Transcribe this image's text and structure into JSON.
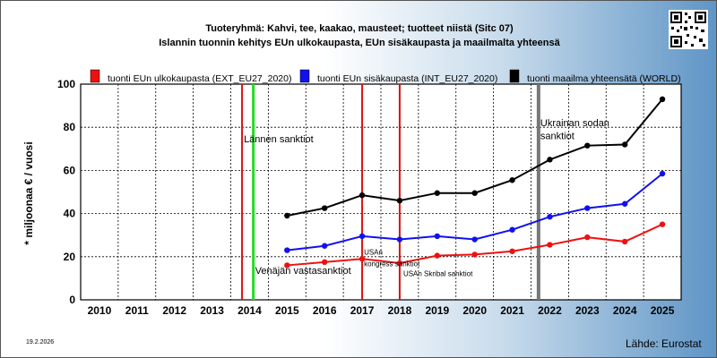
{
  "titles": {
    "line1": "Tuoteryhmä: Kahvi, tee, kaakao, mausteet; tuotteet niistä (Sitc 07)",
    "line2": "Islannin tuonnin kehitys EUn ulkokaupasta, EUn sisäkaupasta ja maailmalta yhteensä"
  },
  "footer": {
    "date": "19.2.2026",
    "source": "Lähde: Eurostat"
  },
  "chart_data": {
    "type": "line",
    "title": "Tuoteryhmä: Kahvi, tee, kaakao, mausteet; tuotteet niistä (Sitc 07)",
    "subtitle": "Islannin tuonnin kehitys EUn ulkokaupasta, EUn sisäkaupasta ja maailmalta yhteensä",
    "xlabel": "",
    "ylabel": "* miljoonaa € / vuosi",
    "x": [
      "2010",
      "2011",
      "2012",
      "2013",
      "2014",
      "2015",
      "2016",
      "2017",
      "2018",
      "2019",
      "2020",
      "2021",
      "2022",
      "2023",
      "2024",
      "2025"
    ],
    "ylim": [
      0,
      100
    ],
    "yticks": [
      "0",
      "20",
      "40",
      "60",
      "80",
      "100"
    ],
    "grid": true,
    "legend_position": "top",
    "series": [
      {
        "name": "tuonti EUn ulkokaupasta (EXT_EU27_2020)",
        "color": "#ee1111",
        "values": [
          null,
          null,
          null,
          null,
          null,
          16,
          17.5,
          19,
          17,
          20.5,
          21,
          22.5,
          25.5,
          29,
          27,
          35
        ]
      },
      {
        "name": "tuonti EUn sisäkaupasta (INT_EU27_2020)",
        "color": "#1111ee",
        "values": [
          null,
          null,
          null,
          null,
          null,
          23,
          25,
          29.5,
          28,
          29.5,
          28,
          32.5,
          38.5,
          42.5,
          44.5,
          58.5
        ]
      },
      {
        "name": "tuonti maailma yhteensätä (WORLD)",
        "color": "#000000",
        "values": [
          null,
          null,
          null,
          null,
          null,
          39,
          42.5,
          48.5,
          46,
          49.5,
          49.5,
          55.5,
          65,
          71.5,
          72,
          93
        ]
      }
    ],
    "annotations": [
      {
        "label": "Lännen sanktiot",
        "x": 2013.8,
        "line_color": "#dd1111",
        "label_y": 73
      },
      {
        "label": "",
        "x": 2014.1,
        "line_color": "#22dd22",
        "label_y": null
      },
      {
        "label": "Venäjän vastasanktiot",
        "x": 2014.1,
        "line_color": "",
        "label_y": 12
      },
      {
        "label": "USAn",
        "x": 2017.0,
        "line_color": "#dd1111",
        "label_y": 21
      },
      {
        "label": "kongress sanktiot",
        "x": 2017.0,
        "line_color": "",
        "label_y": 15.5
      },
      {
        "label": "USAn Skribal sanktiot",
        "x": 2018.0,
        "line_color": "#dd1111",
        "label_y": 11
      },
      {
        "label": "Ukrainan sodan",
        "x": 2021.7,
        "line_color": "#777777",
        "label_y": 80.5
      },
      {
        "label": "sanktiot",
        "x": 2021.7,
        "line_color": "",
        "label_y": 74.5
      }
    ]
  }
}
